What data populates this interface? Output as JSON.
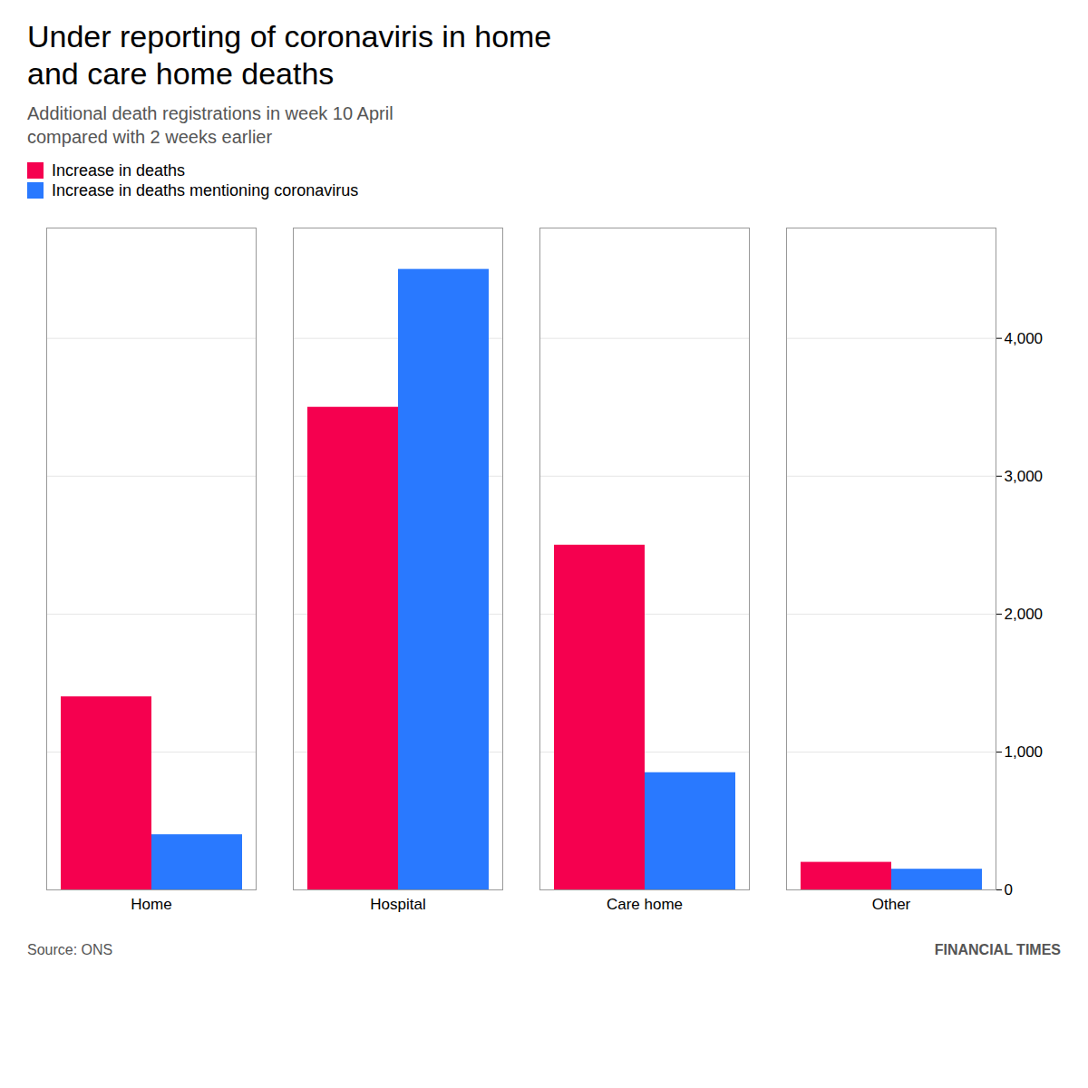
{
  "chart_data": {
    "type": "bar",
    "title": [
      "Under reporting of coronaviris in home",
      "and care home deaths"
    ],
    "subtitle": [
      "Additional death registrations in week 10 April",
      "compared with 2 weeks earlier"
    ],
    "categories": [
      "Home",
      "Hospital",
      "Care home",
      "Other"
    ],
    "series": [
      {
        "name": "Increase in deaths",
        "color": "#f5004f",
        "values": [
          1400,
          3500,
          2500,
          200
        ]
      },
      {
        "name": "Increase in deaths mentioning coronavirus",
        "color": "#2979ff",
        "values": [
          400,
          4500,
          850,
          150
        ]
      }
    ],
    "ylim": [
      0,
      4800
    ],
    "yticks": [
      0,
      {
        "value": 1000,
        "label": "1,000"
      },
      {
        "value": 2000,
        "label": "2,000"
      },
      {
        "value": 3000,
        "label": "3,000"
      },
      {
        "value": 4000,
        "label": "4,000"
      }
    ],
    "grid": true,
    "legend": "upper left",
    "source": "Source: ONS",
    "brand": "FINANCIAL TIMES"
  }
}
